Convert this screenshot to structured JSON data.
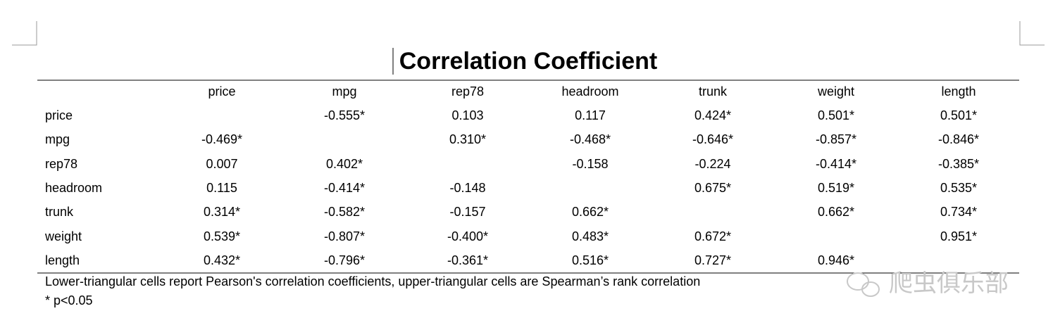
{
  "title": "Correlation Coefficient",
  "table": {
    "header": [
      null,
      "price",
      "mpg",
      "rep78",
      "headroom",
      "trunk",
      "weight",
      "length"
    ],
    "rows": [
      [
        "price",
        null,
        "-0.555*",
        "0.103",
        "0.117",
        "0.424*",
        "0.501*",
        "0.501*"
      ],
      [
        "mpg",
        "-0.469*",
        null,
        "0.310*",
        "-0.468*",
        "-0.646*",
        "-0.857*",
        "-0.846*"
      ],
      [
        "rep78",
        "0.007",
        "0.402*",
        null,
        "-0.158",
        "-0.224",
        "-0.414*",
        "-0.385*"
      ],
      [
        "headroom",
        "0.115",
        "-0.414*",
        "-0.148",
        null,
        "0.675*",
        "0.519*",
        "0.535*"
      ],
      [
        "trunk",
        "0.314*",
        "-0.582*",
        "-0.157",
        "0.662*",
        null,
        "0.662*",
        "0.734*"
      ],
      [
        "weight",
        "0.539*",
        "-0.807*",
        "-0.400*",
        "0.483*",
        "0.672*",
        null,
        "0.951*"
      ],
      [
        "length",
        "0.432*",
        "-0.796*",
        "-0.361*",
        "0.516*",
        "0.727*",
        "0.946*",
        null
      ]
    ]
  },
  "notes": [
    "Lower-triangular cells report Pearson's correlation coefficients, upper-triangular cells are Spearman’s rank correlation",
    "* p<0.05"
  ],
  "watermark": "爬虫俱乐部"
}
